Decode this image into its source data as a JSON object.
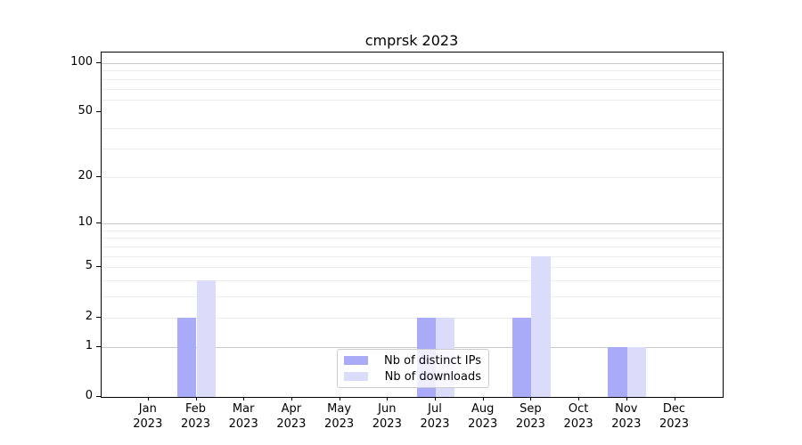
{
  "title": "cmprsk 2023",
  "chart_data": {
    "type": "bar",
    "title": "cmprsk 2023",
    "categories": [
      {
        "month": "Jan",
        "year": "2023"
      },
      {
        "month": "Feb",
        "year": "2023"
      },
      {
        "month": "Mar",
        "year": "2023"
      },
      {
        "month": "Apr",
        "year": "2023"
      },
      {
        "month": "May",
        "year": "2023"
      },
      {
        "month": "Jun",
        "year": "2023"
      },
      {
        "month": "Jul",
        "year": "2023"
      },
      {
        "month": "Aug",
        "year": "2023"
      },
      {
        "month": "Sep",
        "year": "2023"
      },
      {
        "month": "Oct",
        "year": "2023"
      },
      {
        "month": "Nov",
        "year": "2023"
      },
      {
        "month": "Dec",
        "year": "2023"
      }
    ],
    "series": [
      {
        "name": "Nb of distinct IPs",
        "color": "#a9aaf8",
        "values": [
          0,
          2,
          0,
          0,
          0,
          0,
          2,
          0,
          2,
          0,
          1,
          0
        ]
      },
      {
        "name": "Nb of downloads",
        "color": "#dbdcfa",
        "values": [
          0,
          4,
          0,
          0,
          0,
          0,
          2,
          0,
          6,
          0,
          1,
          0
        ]
      }
    ],
    "xlabel": "",
    "ylabel": "",
    "yscale": "log1p",
    "yticks": [
      0,
      1,
      2,
      5,
      10,
      20,
      50,
      100
    ],
    "ylim": [
      0,
      116
    ],
    "grid": {
      "major": [
        1,
        10,
        100
      ],
      "minor": [
        2,
        3,
        4,
        5,
        6,
        7,
        8,
        9,
        20,
        30,
        40,
        60,
        70,
        80,
        90
      ],
      "major_color": "#c9c9c9",
      "minor_color": "#ededed"
    },
    "legend": {
      "position": "lower center",
      "entries": [
        "Nb of distinct IPs",
        "Nb of downloads"
      ]
    }
  }
}
